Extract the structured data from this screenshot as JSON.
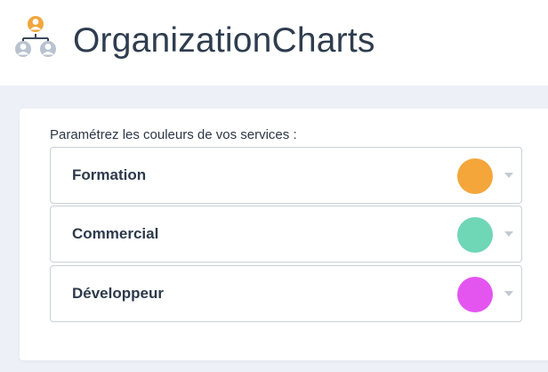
{
  "header": {
    "title": "OrganizationCharts",
    "logo_icon": "org-chart-people-icon",
    "logo_colors": {
      "top_person": "#f0a63c",
      "bottom_people": "#b9c3cf",
      "connector": "#3d4a5a"
    }
  },
  "settings": {
    "intro_text": "Paramétrez les couleurs de vos services :",
    "services": [
      {
        "label": "Formation",
        "color": "#f4a63b"
      },
      {
        "label": "Commercial",
        "color": "#6fd6b6"
      },
      {
        "label": "Développeur",
        "color": "#e455f0"
      }
    ],
    "dropdown_icon": "caret-down-icon"
  }
}
